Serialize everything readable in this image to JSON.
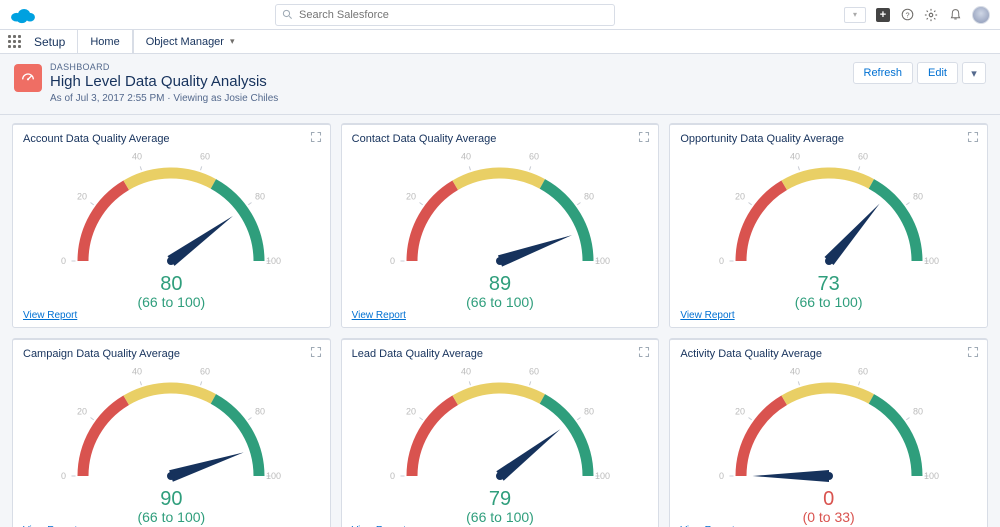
{
  "header": {
    "search_placeholder": "Search Salesforce",
    "app_name": "Setup",
    "tab_home": "Home",
    "tab_object_manager": "Object Manager"
  },
  "page": {
    "eyebrow": "DASHBOARD",
    "title": "High Level Data Quality Analysis",
    "subtitle": "As of Jul 3, 2017 2:55 PM · Viewing as Josie Chiles",
    "refresh_label": "Refresh",
    "edit_label": "Edit"
  },
  "gauge_style": {
    "band_colors": {
      "red": "#d9534f",
      "yellow": "#e9cf65",
      "green": "#2f9e7c"
    },
    "thresholds": [
      0,
      33,
      66,
      100
    ],
    "band_width": 11,
    "needle_color": "#16325c",
    "tick_label_color": "#bbbbbb",
    "tick_label_fontsize": 9,
    "value_fontsize": 20,
    "range_fontsize": 14,
    "good_text_color": "#2f9e7c",
    "bad_text_color": "#d9534f",
    "scale_min": 0,
    "scale_max": 100
  },
  "cards": [
    {
      "title": "Account Data Quality Average",
      "value": 80,
      "range": "(66 to 100)",
      "status": "good",
      "link": "View Report"
    },
    {
      "title": "Contact Data Quality Average",
      "value": 89,
      "range": "(66 to 100)",
      "status": "good",
      "link": "View Report"
    },
    {
      "title": "Opportunity Data Quality Average",
      "value": 73,
      "range": "(66 to 100)",
      "status": "good",
      "link": "View Report"
    },
    {
      "title": "Campaign Data Quality Average",
      "value": 90,
      "range": "(66 to 100)",
      "status": "good",
      "link": "View Report"
    },
    {
      "title": "Lead Data Quality Average",
      "value": 79,
      "range": "(66 to 100)",
      "status": "good",
      "link": "View Report"
    },
    {
      "title": "Activity Data Quality Average",
      "value": 0,
      "range": "(0 to 33)",
      "status": "bad",
      "link": "View Report"
    }
  ]
}
